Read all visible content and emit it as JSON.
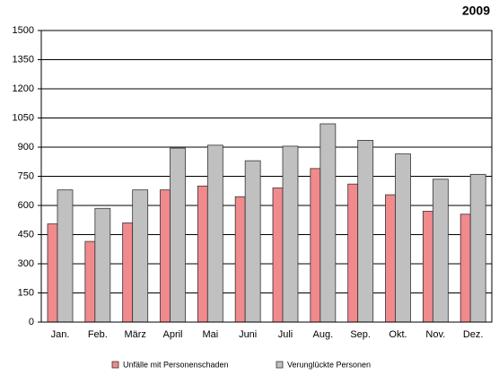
{
  "chart_data": {
    "type": "bar",
    "title": "2009",
    "categories": [
      "Jan.",
      "Feb.",
      "März",
      "April",
      "Mai",
      "Juni",
      "Juli",
      "Aug.",
      "Sep.",
      "Okt.",
      "Nov.",
      "Dez."
    ],
    "series": [
      {
        "name": "Unfälle mit Personenschaden",
        "color": "#f08a8c",
        "values": [
          505,
          415,
          510,
          680,
          700,
          645,
          690,
          790,
          710,
          655,
          570,
          555
        ]
      },
      {
        "name": "Verunglückte Personen",
        "color": "#c0c0c0",
        "values": [
          680,
          585,
          680,
          895,
          910,
          830,
          905,
          1020,
          935,
          865,
          735,
          760
        ]
      }
    ],
    "ylim": [
      0,
      1500
    ],
    "yticks": [
      0,
      150,
      300,
      450,
      600,
      750,
      900,
      1050,
      1200,
      1350,
      1500
    ],
    "grid": true,
    "legend": "bottom"
  }
}
